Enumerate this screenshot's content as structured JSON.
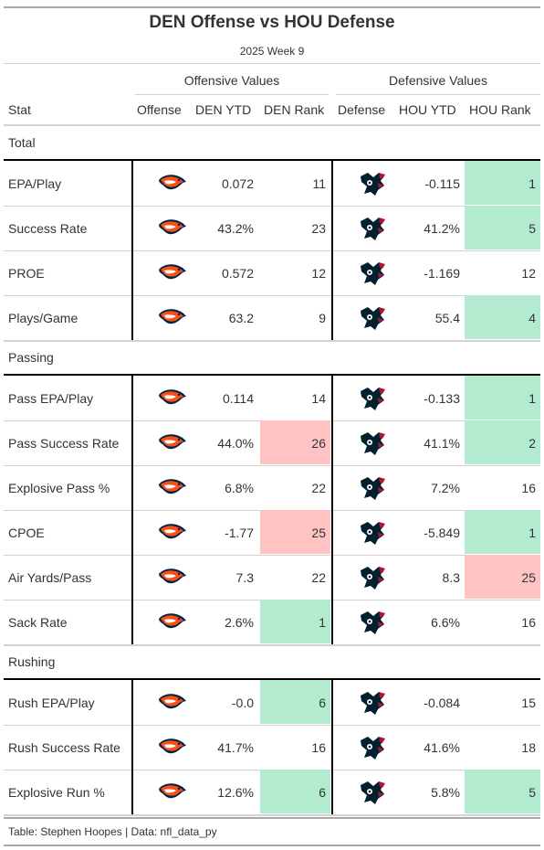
{
  "table": {
    "title": "DEN Offense vs HOU Defense",
    "subtitle": "2025 Week 9",
    "spanners": {
      "offense": "Offensive Values",
      "defense": "Defensive Values"
    },
    "columns": {
      "stat": "Stat",
      "offense": "Offense",
      "den_ytd": "DEN YTD",
      "den_rank": "DEN Rank",
      "defense": "Defense",
      "hou_ytd": "HOU YTD",
      "hou_rank": "HOU Rank"
    },
    "footer": "Table: Stephen Hoopes | Data: nfl_data_py"
  },
  "colors": {
    "good": "#b2ebd0",
    "bad": "#ffc3c3",
    "broncos_orange": "#fb4f14",
    "broncos_navy": "#002244",
    "texans_navy": "#03202f",
    "texans_red": "#a71930"
  },
  "icons": {
    "offense": "broncos-logo-icon",
    "defense": "texans-logo-icon"
  },
  "chart_data": {
    "type": "table",
    "groups": [
      {
        "name": "Total",
        "rows": [
          {
            "stat": "EPA/Play",
            "den_ytd": "0.072",
            "den_rank": "11",
            "hou_ytd": "-0.115",
            "hou_rank": "1",
            "den_rank_fill": "",
            "hou_rank_fill": "good"
          },
          {
            "stat": "Success Rate",
            "den_ytd": "43.2%",
            "den_rank": "23",
            "hou_ytd": "41.2%",
            "hou_rank": "5",
            "den_rank_fill": "",
            "hou_rank_fill": "good"
          },
          {
            "stat": "PROE",
            "den_ytd": "0.572",
            "den_rank": "12",
            "hou_ytd": "-1.169",
            "hou_rank": "12",
            "den_rank_fill": "",
            "hou_rank_fill": ""
          },
          {
            "stat": "Plays/Game",
            "den_ytd": "63.2",
            "den_rank": "9",
            "hou_ytd": "55.4",
            "hou_rank": "4",
            "den_rank_fill": "",
            "hou_rank_fill": "good"
          }
        ]
      },
      {
        "name": "Passing",
        "rows": [
          {
            "stat": "Pass EPA/Play",
            "den_ytd": "0.114",
            "den_rank": "14",
            "hou_ytd": "-0.133",
            "hou_rank": "1",
            "den_rank_fill": "",
            "hou_rank_fill": "good"
          },
          {
            "stat": "Pass Success Rate",
            "den_ytd": "44.0%",
            "den_rank": "26",
            "hou_ytd": "41.1%",
            "hou_rank": "2",
            "den_rank_fill": "bad",
            "hou_rank_fill": "good"
          },
          {
            "stat": "Explosive Pass %",
            "den_ytd": "6.8%",
            "den_rank": "22",
            "hou_ytd": "7.2%",
            "hou_rank": "16",
            "den_rank_fill": "",
            "hou_rank_fill": ""
          },
          {
            "stat": "CPOE",
            "den_ytd": "-1.77",
            "den_rank": "25",
            "hou_ytd": "-5.849",
            "hou_rank": "1",
            "den_rank_fill": "bad",
            "hou_rank_fill": "good"
          },
          {
            "stat": "Air Yards/Pass",
            "den_ytd": "7.3",
            "den_rank": "22",
            "hou_ytd": "8.3",
            "hou_rank": "25",
            "den_rank_fill": "",
            "hou_rank_fill": "bad"
          },
          {
            "stat": "Sack Rate",
            "den_ytd": "2.6%",
            "den_rank": "1",
            "hou_ytd": "6.6%",
            "hou_rank": "16",
            "den_rank_fill": "good",
            "hou_rank_fill": ""
          }
        ]
      },
      {
        "name": "Rushing",
        "rows": [
          {
            "stat": "Rush EPA/Play",
            "den_ytd": "-0.0",
            "den_rank": "6",
            "hou_ytd": "-0.084",
            "hou_rank": "15",
            "den_rank_fill": "good",
            "hou_rank_fill": ""
          },
          {
            "stat": "Rush Success Rate",
            "den_ytd": "41.7%",
            "den_rank": "16",
            "hou_ytd": "41.6%",
            "hou_rank": "18",
            "den_rank_fill": "",
            "hou_rank_fill": ""
          },
          {
            "stat": "Explosive Run %",
            "den_ytd": "12.6%",
            "den_rank": "6",
            "hou_ytd": "5.8%",
            "hou_rank": "5",
            "den_rank_fill": "good",
            "hou_rank_fill": "good"
          }
        ]
      }
    ]
  }
}
